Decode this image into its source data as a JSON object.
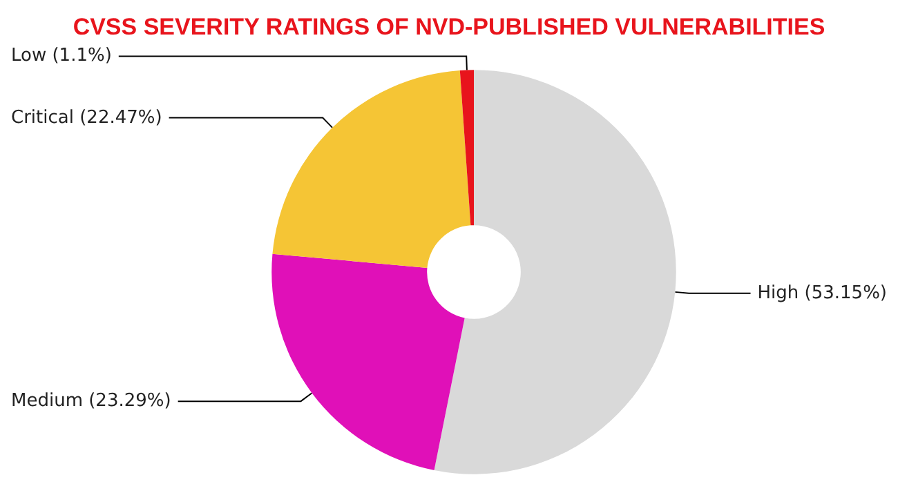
{
  "chart_data": {
    "type": "donut",
    "title": "CVSS SEVERITY RATINGS OF NVD-PUBLISHED VULNERABILITIES",
    "categories": [
      "High",
      "Medium",
      "Critical",
      "Low"
    ],
    "values": [
      53.15,
      23.29,
      22.47,
      1.1
    ],
    "value_labels": [
      "(53.15%)",
      "(23.29%)",
      "(22.47%)",
      "(1.1%)"
    ],
    "colors": [
      "#d9d9d9",
      "#e010b8",
      "#f5c535",
      "#e8141c"
    ],
    "legend": false
  }
}
